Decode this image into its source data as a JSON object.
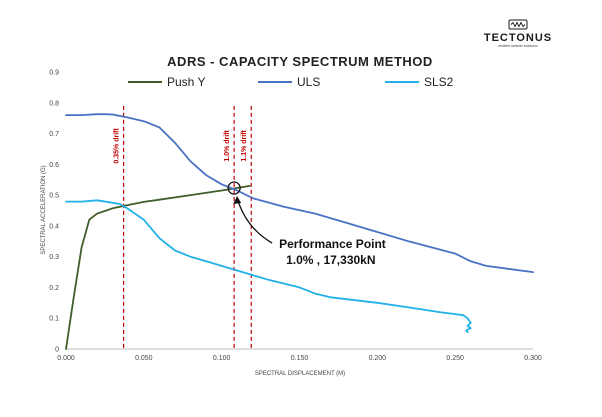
{
  "brand": {
    "name": "TECTONUS",
    "tagline": "resilient seismic solutions",
    "logo_icon": "tectonus-logo-icon"
  },
  "chart_data": {
    "type": "line",
    "title": "ADRS - CAPACITY SPECTRUM METHOD",
    "xlabel": "SPECTRAL DISPLACEMENT (M)",
    "ylabel": "SPECTRAL ACCELERATION (G)",
    "xlim": [
      0,
      0.3
    ],
    "ylim": [
      0,
      0.9
    ],
    "x_ticks": [
      0,
      0.05,
      0.1,
      0.15,
      0.2,
      0.25,
      0.3
    ],
    "x_tick_labels": [
      "0.000",
      "0.050",
      "0.100",
      "0.150",
      "0.200",
      "0.250",
      "0.300"
    ],
    "y_ticks": [
      0,
      0.1,
      0.2,
      0.3,
      0.4,
      0.5,
      0.6,
      0.7,
      0.8,
      0.9
    ],
    "y_tick_labels": [
      "0",
      "0.1",
      "0.2",
      "0.3",
      "0.4",
      "0.5",
      "0.6",
      "0.7",
      "0.8",
      "0.9"
    ],
    "grid": false,
    "legend_position": "top",
    "series": [
      {
        "name": "Push Y",
        "color": "#3f5f2a",
        "x": [
          0,
          0.005,
          0.01,
          0.015,
          0.02,
          0.03,
          0.04,
          0.05,
          0.06,
          0.08,
          0.1,
          0.11,
          0.118
        ],
        "y": [
          0,
          0.17,
          0.33,
          0.42,
          0.44,
          0.457,
          0.468,
          0.478,
          0.485,
          0.5,
          0.515,
          0.523,
          0.53
        ]
      },
      {
        "name": "ULS",
        "color": "#4a72c4",
        "x": [
          0,
          0.01,
          0.02,
          0.025,
          0.03,
          0.04,
          0.05,
          0.06,
          0.07,
          0.08,
          0.09,
          0.1,
          0.11,
          0.12,
          0.14,
          0.16,
          0.18,
          0.2,
          0.22,
          0.25,
          0.26,
          0.27,
          0.3
        ],
        "y": [
          0.76,
          0.76,
          0.763,
          0.763,
          0.762,
          0.752,
          0.74,
          0.72,
          0.67,
          0.61,
          0.565,
          0.535,
          0.515,
          0.49,
          0.462,
          0.44,
          0.41,
          0.38,
          0.35,
          0.31,
          0.285,
          0.27,
          0.25
        ]
      },
      {
        "name": "SLS2",
        "color": "#22b0e8",
        "x": [
          0,
          0.01,
          0.02,
          0.03,
          0.035,
          0.04,
          0.05,
          0.06,
          0.07,
          0.08,
          0.09,
          0.1,
          0.11,
          0.13,
          0.15,
          0.16,
          0.17,
          0.2,
          0.22,
          0.24,
          0.255,
          0.258,
          0.26,
          0.258,
          0.26,
          0.257,
          0.258
        ],
        "y": [
          0.479,
          0.479,
          0.483,
          0.475,
          0.47,
          0.455,
          0.42,
          0.36,
          0.32,
          0.3,
          0.285,
          0.27,
          0.255,
          0.225,
          0.2,
          0.18,
          0.168,
          0.15,
          0.135,
          0.12,
          0.11,
          0.1,
          0.085,
          0.075,
          0.068,
          0.06,
          0.055
        ]
      }
    ],
    "drift_lines": [
      {
        "label": "0.35% drift",
        "x": 0.037,
        "color": "#c00000"
      },
      {
        "label": "1.0% drift",
        "x": 0.108,
        "color": "#c00000"
      },
      {
        "label": "1.1% drift",
        "x": 0.119,
        "color": "#c00000"
      }
    ],
    "performance_point": {
      "x": 0.108,
      "y": 0.523,
      "label_line1": "Performance Point",
      "label_line2": "1.0% , 17,330kN"
    }
  }
}
